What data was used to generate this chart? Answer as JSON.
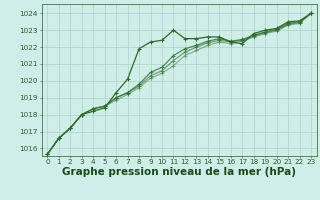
{
  "title": "Graphe pression niveau de la mer (hPa)",
  "bg_color": "#d0eee8",
  "plot_bg_color": "#d0eee8",
  "grid_color": "#a8ccbc",
  "line_color": "#2d6b2d",
  "xlim": [
    -0.5,
    23.5
  ],
  "ylim": [
    1015.55,
    1024.55
  ],
  "yticks": [
    1016,
    1017,
    1018,
    1019,
    1020,
    1021,
    1022,
    1023,
    1024
  ],
  "xticks": [
    0,
    1,
    2,
    3,
    4,
    5,
    6,
    7,
    8,
    9,
    10,
    11,
    12,
    13,
    14,
    15,
    16,
    17,
    18,
    19,
    20,
    21,
    22,
    23
  ],
  "series": [
    [
      1015.65,
      1016.6,
      1017.2,
      1018.0,
      1018.2,
      1018.4,
      1019.3,
      1020.1,
      1021.9,
      1022.3,
      1022.4,
      1023.0,
      1022.5,
      1022.5,
      1022.6,
      1022.6,
      1022.3,
      1022.2,
      1022.8,
      1023.0,
      1023.1,
      1023.5,
      1023.55,
      1024.0
    ],
    [
      1015.65,
      1016.6,
      1017.2,
      1018.0,
      1018.35,
      1018.5,
      1019.0,
      1019.3,
      1019.8,
      1020.5,
      1020.8,
      1021.5,
      1021.9,
      1022.1,
      1022.35,
      1022.5,
      1022.35,
      1022.45,
      1022.7,
      1022.9,
      1023.05,
      1023.4,
      1023.5,
      1024.0
    ],
    [
      1015.65,
      1016.6,
      1017.2,
      1018.0,
      1018.35,
      1018.5,
      1019.0,
      1019.3,
      1019.7,
      1020.3,
      1020.6,
      1021.2,
      1021.7,
      1022.0,
      1022.25,
      1022.4,
      1022.3,
      1022.4,
      1022.65,
      1022.85,
      1023.0,
      1023.35,
      1023.45,
      1024.0
    ],
    [
      1015.65,
      1016.6,
      1017.2,
      1018.0,
      1018.35,
      1018.5,
      1018.85,
      1019.2,
      1019.6,
      1020.15,
      1020.45,
      1020.9,
      1021.5,
      1021.8,
      1022.1,
      1022.3,
      1022.2,
      1022.35,
      1022.6,
      1022.8,
      1022.95,
      1023.3,
      1023.4,
      1024.0
    ]
  ],
  "marker": "+",
  "markersize": 3.5,
  "linewidth": 0.9,
  "title_fontsize": 7.5,
  "tick_fontsize": 5.2,
  "title_color": "#1a4a1a",
  "tick_color": "#2d5a2d"
}
